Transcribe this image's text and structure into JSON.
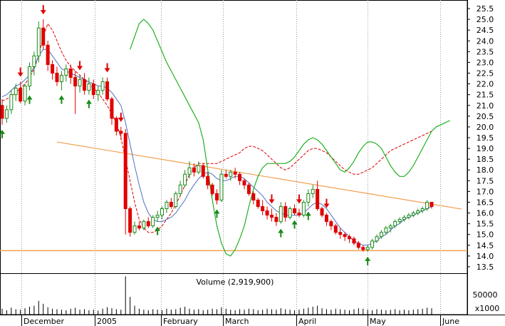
{
  "chart_data": {
    "type": "candlestick",
    "y_ticks": [
      "25.5",
      "25.0",
      "24.5",
      "24.0",
      "23.5",
      "23.0",
      "22.5",
      "22.0",
      "21.5",
      "21.0",
      "20.5",
      "20.0",
      "19.5",
      "19.0",
      "18.5",
      "18.0",
      "17.5",
      "17.0",
      "16.5",
      "16.0",
      "15.5",
      "15.0",
      "14.5",
      "14.0",
      "13.5"
    ],
    "ylim": [
      13.2,
      25.8
    ],
    "x_labels": [
      "December",
      "2005",
      "February",
      "March",
      "April",
      "May",
      "June"
    ],
    "volume_title": "Volume (2,919,900)",
    "volume_tick": "50000",
    "volume_unit": "x1000",
    "ohlc": [
      [
        21.0,
        21.3,
        20.1,
        20.4
      ],
      [
        20.4,
        21.0,
        20.2,
        20.8
      ],
      [
        20.8,
        21.7,
        20.6,
        21.5
      ],
      [
        21.5,
        22.0,
        21.2,
        21.8
      ],
      [
        21.8,
        22.1,
        21.1,
        21.2
      ],
      [
        21.2,
        22.0,
        21.0,
        21.9
      ],
      [
        21.9,
        23.0,
        21.7,
        22.8
      ],
      [
        22.8,
        23.5,
        22.4,
        23.3
      ],
      [
        23.3,
        24.9,
        23.0,
        24.6
      ],
      [
        24.6,
        25.0,
        23.6,
        23.8
      ],
      [
        23.8,
        24.0,
        22.6,
        22.9
      ],
      [
        22.9,
        23.1,
        22.2,
        22.5
      ],
      [
        22.5,
        22.8,
        21.9,
        22.1
      ],
      [
        22.1,
        22.6,
        21.7,
        22.4
      ],
      [
        22.4,
        22.9,
        22.1,
        22.7
      ],
      [
        22.7,
        22.9,
        22.0,
        22.3
      ],
      [
        22.3,
        22.6,
        20.6,
        21.9
      ],
      [
        21.9,
        22.4,
        21.6,
        22.2
      ],
      [
        22.2,
        22.5,
        21.5,
        21.7
      ],
      [
        21.7,
        22.3,
        21.5,
        22.0
      ],
      [
        22.0,
        22.2,
        21.3,
        21.5
      ],
      [
        21.5,
        21.9,
        21.2,
        21.7
      ],
      [
        21.7,
        22.3,
        21.5,
        22.1
      ],
      [
        22.1,
        22.3,
        21.2,
        21.3
      ],
      [
        21.3,
        21.4,
        20.1,
        20.4
      ],
      [
        20.4,
        20.5,
        19.6,
        19.8
      ],
      [
        19.8,
        20.0,
        19.4,
        19.7
      ],
      [
        19.7,
        19.9,
        15.0,
        16.2
      ],
      [
        16.2,
        16.3,
        14.9,
        15.1
      ],
      [
        15.1,
        15.6,
        15.0,
        15.4
      ],
      [
        15.4,
        15.6,
        15.2,
        15.3
      ],
      [
        15.3,
        15.7,
        15.2,
        15.6
      ],
      [
        15.6,
        15.8,
        15.3,
        15.4
      ],
      [
        15.4,
        15.9,
        15.3,
        15.8
      ],
      [
        15.8,
        16.1,
        15.6,
        15.9
      ],
      [
        15.9,
        16.3,
        15.7,
        16.2
      ],
      [
        16.2,
        16.6,
        16.0,
        16.5
      ],
      [
        16.5,
        16.7,
        16.2,
        16.3
      ],
      [
        16.3,
        17.0,
        16.2,
        16.9
      ],
      [
        16.9,
        17.5,
        16.8,
        17.3
      ],
      [
        17.3,
        18.0,
        17.2,
        17.8
      ],
      [
        17.8,
        18.4,
        17.6,
        18.1
      ],
      [
        18.1,
        18.3,
        17.7,
        17.9
      ],
      [
        17.9,
        18.4,
        17.8,
        18.2
      ],
      [
        18.2,
        18.3,
        17.6,
        17.7
      ],
      [
        17.7,
        17.9,
        17.1,
        17.3
      ],
      [
        17.3,
        17.4,
        16.8,
        16.9
      ],
      [
        16.9,
        17.1,
        16.4,
        16.6
      ],
      [
        16.6,
        18.0,
        16.5,
        17.8
      ],
      [
        17.8,
        18.0,
        17.6,
        17.7
      ],
      [
        17.7,
        18.0,
        17.5,
        17.9
      ],
      [
        17.9,
        18.1,
        17.6,
        17.8
      ],
      [
        17.8,
        17.9,
        17.3,
        17.5
      ],
      [
        17.5,
        17.6,
        17.1,
        17.3
      ],
      [
        17.3,
        17.4,
        16.8,
        16.9
      ],
      [
        16.9,
        17.0,
        16.4,
        16.6
      ],
      [
        16.6,
        16.7,
        16.2,
        16.3
      ],
      [
        16.3,
        16.6,
        15.9,
        16.1
      ],
      [
        16.1,
        16.3,
        15.7,
        15.9
      ],
      [
        15.9,
        16.2,
        15.6,
        15.8
      ],
      [
        15.8,
        16.0,
        15.4,
        15.6
      ],
      [
        15.6,
        16.5,
        15.5,
        16.3
      ],
      [
        16.3,
        16.5,
        15.6,
        15.8
      ],
      [
        15.8,
        16.3,
        15.7,
        16.2
      ],
      [
        16.2,
        16.4,
        15.9,
        16.0
      ],
      [
        16.0,
        16.2,
        15.8,
        15.9
      ],
      [
        15.9,
        16.6,
        15.8,
        16.5
      ],
      [
        16.5,
        17.1,
        16.3,
        16.9
      ],
      [
        16.9,
        17.3,
        16.7,
        17.1
      ],
      [
        17.1,
        17.5,
        16.1,
        16.2
      ],
      [
        16.2,
        16.3,
        15.8,
        15.9
      ],
      [
        15.9,
        16.0,
        15.4,
        15.6
      ],
      [
        15.6,
        15.7,
        15.2,
        15.4
      ],
      [
        15.4,
        15.5,
        15.0,
        15.1
      ],
      [
        15.1,
        15.3,
        14.8,
        15.0
      ],
      [
        15.0,
        15.1,
        14.7,
        14.9
      ],
      [
        14.9,
        15.0,
        14.6,
        14.8
      ],
      [
        14.8,
        14.9,
        14.5,
        14.6
      ],
      [
        14.6,
        14.7,
        14.3,
        14.4
      ],
      [
        14.4,
        14.5,
        14.2,
        14.3
      ],
      [
        14.3,
        14.5,
        14.2,
        14.4
      ],
      [
        14.4,
        14.8,
        14.3,
        14.7
      ],
      [
        14.7,
        15.0,
        14.6,
        14.9
      ],
      [
        14.9,
        15.2,
        14.8,
        15.1
      ],
      [
        15.1,
        15.4,
        15.0,
        15.3
      ],
      [
        15.3,
        15.5,
        15.1,
        15.4
      ],
      [
        15.4,
        15.7,
        15.3,
        15.6
      ],
      [
        15.6,
        15.8,
        15.5,
        15.7
      ],
      [
        15.7,
        15.9,
        15.6,
        15.8
      ],
      [
        15.8,
        16.0,
        15.7,
        15.9
      ],
      [
        15.9,
        16.1,
        15.8,
        16.0
      ],
      [
        16.0,
        16.2,
        15.9,
        16.1
      ],
      [
        16.1,
        16.3,
        16.0,
        16.2
      ],
      [
        16.2,
        16.6,
        16.1,
        16.5
      ],
      [
        16.5,
        16.5,
        16.2,
        16.3
      ]
    ],
    "volume": [
      12000,
      9000,
      14000,
      11000,
      10000,
      13000,
      16000,
      18000,
      28000,
      22000,
      15000,
      12000,
      11000,
      10000,
      9000,
      12000,
      14000,
      10000,
      11000,
      9000,
      10000,
      8000,
      12000,
      15000,
      13000,
      11000,
      10000,
      78000,
      36000,
      18000,
      12000,
      10000,
      9000,
      11000,
      10000,
      9000,
      12000,
      10000,
      11000,
      14000,
      16000,
      12000,
      10000,
      11000,
      9000,
      10000,
      12000,
      11000,
      15000,
      12000,
      10000,
      9000,
      11000,
      10000,
      12000,
      11000,
      9000,
      10000,
      12000,
      11000,
      10000,
      13000,
      11000,
      10000,
      9000,
      10000,
      12000,
      14000,
      16000,
      18000,
      13000,
      11000,
      10000,
      12000,
      11000,
      10000,
      9000,
      11000,
      13000,
      12000,
      10000,
      9000,
      11000,
      10000,
      9000,
      10000,
      11000,
      9000,
      10000,
      9000,
      10000,
      11000,
      12000,
      14000,
      13000
    ],
    "ma_blue": [
      21.4,
      21.5,
      21.7,
      21.9,
      22.0,
      22.2,
      22.4,
      22.8,
      23.3,
      23.6,
      23.6,
      23.3,
      23.0,
      22.7,
      22.6,
      22.5,
      22.4,
      22.3,
      22.2,
      22.1,
      22.0,
      21.9,
      21.9,
      21.8,
      21.6,
      21.3,
      21.0,
      20.2,
      19.2,
      18.2,
      17.3,
      16.5,
      16.0,
      15.7,
      15.6,
      15.6,
      15.7,
      15.8,
      16.0,
      16.3,
      16.6,
      17.0,
      17.3,
      17.6,
      17.8,
      17.9,
      17.8,
      17.6,
      17.5,
      17.5,
      17.6,
      17.7,
      17.7,
      17.6,
      17.4,
      17.2,
      17.0,
      16.8,
      16.5,
      16.3,
      16.1,
      16.0,
      15.9,
      15.9,
      15.9,
      15.9,
      16.0,
      16.2,
      16.4,
      16.5,
      16.4,
      16.2,
      15.9,
      15.6,
      15.3,
      15.1,
      14.9,
      14.7,
      14.6,
      14.5,
      14.5,
      14.6,
      14.7,
      14.9,
      15.0,
      15.2,
      15.4,
      15.5,
      15.7,
      15.8,
      15.9,
      16.0,
      16.1,
      16.2,
      16.3
    ],
    "ma_red_dashed": [
      21.2,
      21.3,
      21.4,
      21.6,
      21.8,
      22.0,
      22.3,
      22.7,
      23.3,
      24.2,
      24.8,
      24.5,
      24.0,
      23.5,
      23.1,
      22.8,
      22.6,
      22.4,
      22.2,
      22.0,
      21.8,
      21.6,
      21.3,
      21.0,
      20.6,
      20.2,
      19.5,
      18.5,
      17.5,
      16.5,
      15.7,
      15.3,
      15.1,
      15.1,
      15.2,
      15.4,
      15.7,
      16.0,
      16.4,
      16.8,
      17.3,
      17.8,
      18.1,
      18.3,
      18.3,
      18.3,
      18.3,
      18.3,
      18.4,
      18.5,
      18.6,
      18.7,
      18.8,
      19.0,
      19.1,
      19.1,
      19.0,
      18.9,
      18.7,
      18.5,
      18.3,
      18.1,
      18.0,
      18.1,
      18.3,
      18.5,
      18.7,
      18.9,
      19.0,
      19.0,
      18.9,
      18.8,
      18.6,
      18.4,
      18.2,
      18.0,
      17.9,
      17.8,
      17.8,
      17.9,
      18.0,
      18.1,
      18.3,
      18.5,
      18.7,
      18.9,
      19.0,
      19.1,
      19.2,
      19.3,
      19.4,
      19.5,
      19.6,
      19.7,
      19.8
    ],
    "band_green": [
      23.6,
      24.2,
      24.8,
      25.0,
      24.8,
      24.5,
      24.0,
      23.5,
      23.0,
      22.6,
      22.2,
      21.8,
      21.4,
      21.0,
      20.6,
      20.2,
      19.4,
      18.0,
      16.6,
      15.4,
      14.6,
      14.1,
      14.0,
      14.3,
      14.8,
      15.4,
      16.3,
      17.1,
      17.7,
      18.1,
      18.3,
      18.3,
      18.3,
      18.3,
      18.3,
      18.4,
      18.6,
      18.9,
      19.2,
      19.4,
      19.5,
      19.4,
      19.2,
      18.9,
      18.6,
      18.3,
      18.0,
      17.9,
      18.1,
      18.4,
      18.8,
      19.1,
      19.3,
      19.3,
      19.2,
      19.0,
      18.6,
      18.2,
      17.9,
      17.7,
      17.7,
      17.9,
      18.2,
      18.6,
      19.0,
      19.4,
      19.8,
      20.0,
      20.1,
      20.2,
      20.3
    ],
    "trendline": {
      "x0": 12,
      "y0": 19.3,
      "x1": 100,
      "y1": 16.2
    },
    "support_level": 14.25,
    "sell_signals": [
      4,
      9,
      17,
      23,
      26,
      59,
      65,
      71
    ],
    "buy_signals": [
      0,
      6,
      13,
      19,
      34,
      47,
      61,
      64,
      67,
      80
    ]
  }
}
